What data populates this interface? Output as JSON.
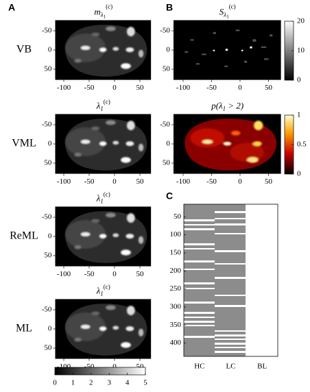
{
  "panel_letters": [
    "A",
    "B",
    "C"
  ],
  "rows": [
    "VB",
    "VML",
    "ReML",
    "ML"
  ],
  "titles": [
    [
      {
        "t": "m"
      },
      {
        "t": "λ",
        "k": "sub"
      },
      {
        "t": "1",
        "k": "subsub"
      },
      {
        "t": "(c)",
        "k": "sup"
      }
    ],
    [
      {
        "t": "S"
      },
      {
        "t": "λ",
        "k": "sub"
      },
      {
        "t": "1",
        "k": "subsub"
      },
      {
        "t": "(c)",
        "k": "sup"
      }
    ],
    [
      {
        "t": "λ"
      },
      {
        "t": "1",
        "k": "sub"
      },
      {
        "t": "(c)",
        "k": "sup"
      }
    ],
    [
      {
        "t": "p(λ"
      },
      {
        "t": "1",
        "k": "sub"
      },
      {
        "t": " > 2)",
        "k": "rest"
      }
    ],
    [
      {
        "t": "λ"
      },
      {
        "t": "1",
        "k": "sub"
      },
      {
        "t": "(c)",
        "k": "sup"
      }
    ],
    [
      {
        "t": "λ"
      },
      {
        "t": "1",
        "k": "sub"
      },
      {
        "t": "(c)",
        "k": "sup"
      }
    ]
  ],
  "map_axes": {
    "xticks": [
      -100,
      -50,
      0,
      50
    ],
    "yticks": [
      -50,
      0,
      50
    ]
  },
  "colorbars": [
    {
      "lim": [
        0,
        20
      ],
      "ticks": [
        0,
        10,
        20
      ]
    },
    {
      "lim": [
        0,
        1
      ],
      "ticks": [
        0,
        0.5,
        1
      ]
    },
    {
      "lim": [
        0,
        5
      ],
      "ticks": [
        0,
        1,
        2,
        3,
        4,
        5
      ]
    }
  ],
  "panel_c": {
    "categories": [
      "HC",
      "LC",
      "BL"
    ],
    "ylim": [
      15,
      437
    ],
    "yticks": [
      50,
      100,
      150,
      200,
      250,
      300,
      350,
      400
    ]
  }
}
